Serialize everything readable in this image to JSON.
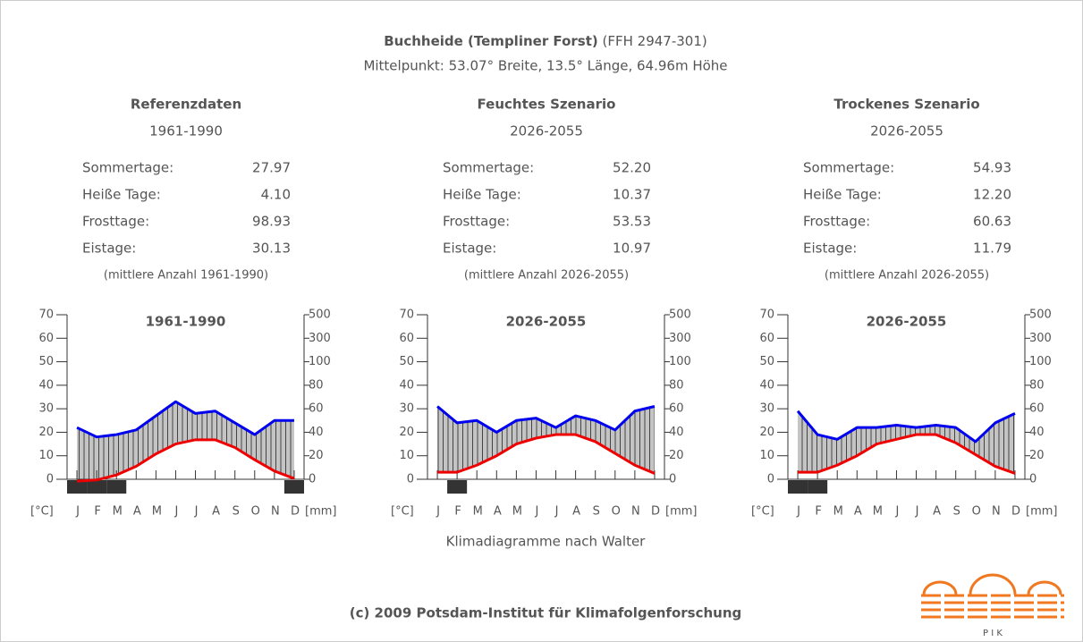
{
  "header": {
    "title": "Buchheide (Templiner Forst)",
    "code": "(FFH 2947-301)",
    "subtitle": "Mittelpunkt: 53.07° Breite, 13.5° Länge, 64.96m Höhe"
  },
  "panels": [
    {
      "title": "Referenzdaten",
      "period": "1961-1990",
      "stats": [
        {
          "label": "Sommertage:",
          "value": "27.97"
        },
        {
          "label": "Heiße Tage:",
          "value": "4.10"
        },
        {
          "label": "Frosttage:",
          "value": "98.93"
        },
        {
          "label": "Eistage:",
          "value": "30.13"
        }
      ],
      "note": "(mittlere Anzahl 1961-1990)"
    },
    {
      "title": "Feuchtes Szenario",
      "period": "2026-2055",
      "stats": [
        {
          "label": "Sommertage:",
          "value": "52.20"
        },
        {
          "label": "Heiße Tage:",
          "value": "10.37"
        },
        {
          "label": "Frosttage:",
          "value": "53.53"
        },
        {
          "label": "Eistage:",
          "value": "10.97"
        }
      ],
      "note": "(mittlere Anzahl 2026-2055)"
    },
    {
      "title": "Trockenes Szenario",
      "period": "2026-2055",
      "stats": [
        {
          "label": "Sommertage:",
          "value": "54.93"
        },
        {
          "label": "Heiße Tage:",
          "value": "12.20"
        },
        {
          "label": "Frosttage:",
          "value": "60.63"
        },
        {
          "label": "Eistage:",
          "value": "11.79"
        }
      ],
      "note": "(mittlere Anzahl 2026-2055)"
    }
  ],
  "chart_data": [
    {
      "type": "line",
      "title": "1961-1990",
      "ylabel": "[°C]",
      "y2label": "[mm]",
      "categories": [
        "J",
        "F",
        "M",
        "A",
        "M",
        "J",
        "J",
        "A",
        "S",
        "O",
        "N",
        "D"
      ],
      "ylim": [
        0,
        70
      ],
      "yticks": [
        0,
        10,
        20,
        30,
        40,
        50,
        60,
        70
      ],
      "y2lim": [
        0,
        500
      ],
      "y2ticks": [
        0,
        20,
        40,
        60,
        80,
        100,
        300,
        500
      ],
      "series": [
        {
          "color": "#ee0000",
          "values": [
            -0.8,
            -0.3,
            1.8,
            5.5,
            10.8,
            15,
            16.8,
            16.8,
            13.5,
            8.3,
            3.5,
            0.3
          ]
        },
        {
          "color": "#0000ee",
          "axis": "y2",
          "values": [
            44,
            36,
            38,
            42,
            54,
            66,
            56,
            58,
            48,
            38,
            50,
            50
          ]
        }
      ],
      "frost": [
        1,
        1,
        1,
        0,
        0,
        0,
        0,
        0,
        0,
        0,
        0,
        1
      ]
    },
    {
      "type": "line",
      "title": "2026-2055",
      "ylabel": "[°C]",
      "y2label": "[mm]",
      "categories": [
        "J",
        "F",
        "M",
        "A",
        "M",
        "J",
        "J",
        "A",
        "S",
        "O",
        "N",
        "D"
      ],
      "ylim": [
        0,
        70
      ],
      "yticks": [
        0,
        10,
        20,
        30,
        40,
        50,
        60,
        70
      ],
      "y2lim": [
        0,
        500
      ],
      "y2ticks": [
        0,
        20,
        40,
        60,
        80,
        100,
        300,
        500
      ],
      "series": [
        {
          "color": "#ee0000",
          "values": [
            3,
            3,
            6,
            10,
            15,
            17.5,
            19,
            19,
            16,
            11,
            6,
            2.5
          ]
        },
        {
          "color": "#0000ee",
          "axis": "y2",
          "values": [
            62,
            48,
            50,
            40,
            50,
            52,
            44,
            54,
            50,
            42,
            58,
            62
          ]
        }
      ],
      "frost": [
        0,
        1,
        0,
        0,
        0,
        0,
        0,
        0,
        0,
        0,
        0,
        0
      ]
    },
    {
      "type": "line",
      "title": "2026-2055",
      "ylabel": "[°C]",
      "y2label": "[mm]",
      "categories": [
        "J",
        "F",
        "M",
        "A",
        "M",
        "J",
        "J",
        "A",
        "S",
        "O",
        "N",
        "D"
      ],
      "ylim": [
        0,
        70
      ],
      "yticks": [
        0,
        10,
        20,
        30,
        40,
        50,
        60,
        70
      ],
      "y2lim": [
        0,
        500
      ],
      "y2ticks": [
        0,
        20,
        40,
        60,
        80,
        100,
        300,
        500
      ],
      "series": [
        {
          "color": "#ee0000",
          "values": [
            3,
            3,
            6,
            10,
            15,
            17,
            19,
            19,
            15.5,
            10.5,
            5.5,
            2.5
          ]
        },
        {
          "color": "#0000ee",
          "axis": "y2",
          "values": [
            58,
            38,
            34,
            44,
            44,
            46,
            44,
            46,
            44,
            32,
            48,
            56
          ]
        }
      ],
      "frost": [
        1,
        1,
        0,
        0,
        0,
        0,
        0,
        0,
        0,
        0,
        0,
        0
      ]
    }
  ],
  "caption": "Klimadiagramme nach Walter",
  "footer": "(c) 2009 Potsdam-Institut für Klimafolgenforschung",
  "logo": "P I K"
}
